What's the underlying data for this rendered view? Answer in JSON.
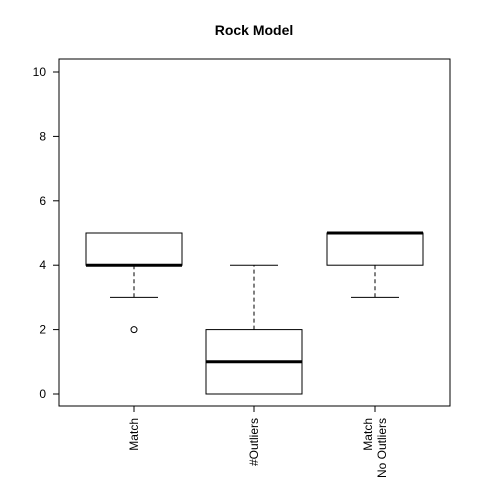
{
  "chart_data": {
    "type": "boxplot",
    "title": "Rock Model",
    "xlabel": "",
    "ylabel": "",
    "ylim": [
      -0.4,
      10.4
    ],
    "yticks": [
      0,
      2,
      4,
      6,
      8,
      10
    ],
    "categories": [
      [
        "Match"
      ],
      [
        "#Outliers"
      ],
      [
        "Match",
        "No Outliers"
      ]
    ],
    "boxes": [
      {
        "whisker_low": 3,
        "q1": 4,
        "median": 4,
        "q3": 5,
        "whisker_high": 5,
        "outliers": [
          2
        ]
      },
      {
        "whisker_low": 0,
        "q1": 0,
        "median": 1,
        "q3": 2,
        "whisker_high": 4,
        "outliers": []
      },
      {
        "whisker_low": 3,
        "q1": 4,
        "median": 5,
        "q3": 5,
        "whisker_high": 5,
        "outliers": []
      }
    ],
    "grid": false,
    "legend": "none",
    "colors": {
      "box_fill": "#ffffff",
      "stroke": "#000000"
    }
  }
}
